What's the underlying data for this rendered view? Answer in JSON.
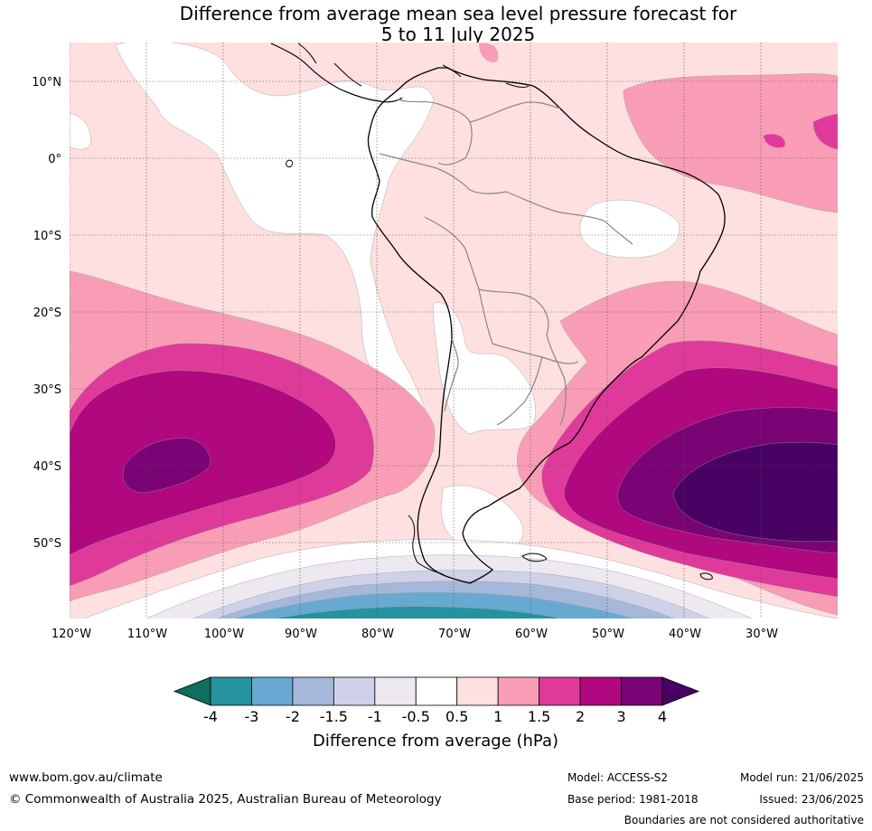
{
  "title_line1": "Difference from average mean sea level pressure forecast for",
  "title_line2": "5 to 11 July 2025",
  "lat_labels": [
    "10°N",
    "0°",
    "10°S",
    "20°S",
    "30°S",
    "40°S",
    "50°S"
  ],
  "lon_labels": [
    "120°W",
    "110°W",
    "100°W",
    "90°W",
    "80°W",
    "70°W",
    "60°W",
    "50°W",
    "40°W",
    "30°W"
  ],
  "colorbar": {
    "title": "Difference from average (hPa)",
    "tick_labels": [
      "-4",
      "-3",
      "-2",
      "-1.5",
      "-1",
      "-0.5",
      "0.5",
      "1",
      "1.5",
      "2",
      "3",
      "4"
    ],
    "colors": [
      "#0f6e5e",
      "#2592a0",
      "#68a9d1",
      "#a5b8d9",
      "#cfd1e8",
      "#eee9f1",
      "#ffffff",
      "#fde0df",
      "#f89db5",
      "#df3a9a",
      "#b1077f",
      "#7a0476",
      "#470264"
    ]
  },
  "footer": {
    "website": "www.bom.gov.au/climate",
    "copyright": "© Commonwealth of Australia 2025, Australian Bureau of Meteorology",
    "model": "Model: ACCESS-S2",
    "base_period": "Base period: 1981-2018",
    "model_run": "Model run: 21/06/2025",
    "issued": "Issued: 23/06/2025",
    "disclaimer": "Boundaries are not considered authoritative"
  }
}
